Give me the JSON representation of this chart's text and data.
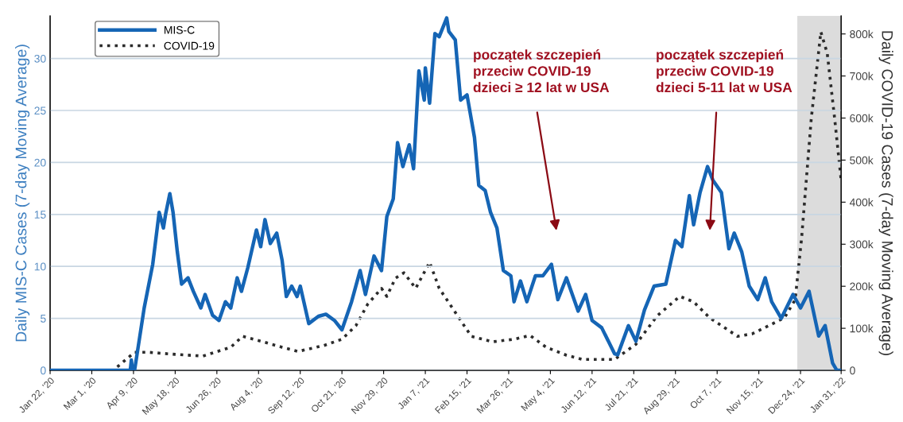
{
  "chart_data": {
    "type": "line",
    "ylabel": "Daily MIS-C Cases (7-day Moving Average)",
    "y2label": "Daily COVID-19 Cases (7-day Moving Average)",
    "xlim": [
      "2020-01-22",
      "2022-01-31"
    ],
    "xticks": [
      {
        "value": "2020-01-22",
        "label": "Jan 22, '20"
      },
      {
        "value": "2020-03-01",
        "label": "Mar 1, '20"
      },
      {
        "value": "2020-04-09",
        "label": "Apr 9, '20"
      },
      {
        "value": "2020-05-18",
        "label": "May 18, '20"
      },
      {
        "value": "2020-06-26",
        "label": "Jun 26, '20"
      },
      {
        "value": "2020-08-04",
        "label": "Aug 4, '20"
      },
      {
        "value": "2020-09-12",
        "label": "Sep 12, '20"
      },
      {
        "value": "2020-10-21",
        "label": "Oct 21, '20"
      },
      {
        "value": "2020-11-29",
        "label": "Nov 29, '20"
      },
      {
        "value": "2021-01-07",
        "label": "Jan 7, '21"
      },
      {
        "value": "2021-02-15",
        "label": "Feb 15, '21"
      },
      {
        "value": "2021-03-26",
        "label": "Mar 26, '21"
      },
      {
        "value": "2021-05-04",
        "label": "May 4, '21"
      },
      {
        "value": "2021-06-12",
        "label": "Jun 12, '21"
      },
      {
        "value": "2021-07-21",
        "label": "Jul 21, '21"
      },
      {
        "value": "2021-08-29",
        "label": "Aug 29, '21"
      },
      {
        "value": "2021-10-07",
        "label": "Oct 7, '21"
      },
      {
        "value": "2021-11-15",
        "label": "Nov 15, '21"
      },
      {
        "value": "2021-12-24",
        "label": "Dec 24, '21"
      },
      {
        "value": "2022-01-31",
        "label": "Jan 31, '22"
      }
    ],
    "ylim": [
      0,
      34.1
    ],
    "yticks": [
      0,
      5,
      10,
      15,
      20,
      25,
      30
    ],
    "y2lim": [
      0,
      843000
    ],
    "y2ticks": [
      0,
      {
        "value": 100000,
        "label": "100k"
      },
      {
        "value": 200000,
        "label": "200k"
      },
      {
        "value": 300000,
        "label": "300k"
      },
      {
        "value": 400000,
        "label": "400k"
      },
      {
        "value": 500000,
        "label": "500k"
      },
      {
        "value": 600000,
        "label": "600k"
      },
      {
        "value": 700000,
        "label": "700k"
      },
      {
        "value": 800000,
        "label": "800k"
      }
    ],
    "grid": "y",
    "legend": "top left",
    "marker": "none",
    "series": [
      {
        "name": "MIS-C",
        "color": "#1565b5",
        "line_style": "solid",
        "x": [
          "2020-01-22",
          "2020-04-06",
          "2020-04-07",
          "2020-04-08",
          "2020-04-10",
          "2020-04-19",
          "2020-04-27",
          "2020-05-03",
          "2020-05-07",
          "2020-05-09",
          "2020-05-13",
          "2020-05-16",
          "2020-05-20",
          "2020-05-24",
          "2020-05-30",
          "2020-06-04",
          "2020-06-11",
          "2020-06-15",
          "2020-06-22",
          "2020-06-28",
          "2020-07-04",
          "2020-07-09",
          "2020-07-15",
          "2020-07-19",
          "2020-07-25",
          "2020-08-02",
          "2020-08-06",
          "2020-08-10",
          "2020-08-15",
          "2020-08-21",
          "2020-08-26",
          "2020-08-30",
          "2020-09-04",
          "2020-09-09",
          "2020-09-12",
          "2020-09-20",
          "2020-09-29",
          "2020-10-06",
          "2020-10-14",
          "2020-10-21",
          "2020-10-30",
          "2020-11-07",
          "2020-11-12",
          "2020-11-20",
          "2020-11-27",
          "2020-12-02",
          "2020-12-08",
          "2020-12-12",
          "2020-12-17",
          "2020-12-23",
          "2020-12-27",
          "2021-01-01",
          "2021-01-06",
          "2021-01-07",
          "2021-01-11",
          "2021-01-16",
          "2021-01-20",
          "2021-01-27",
          "2021-01-29",
          "2021-02-04",
          "2021-02-09",
          "2021-02-15",
          "2021-02-22",
          "2021-02-26",
          "2021-03-04",
          "2021-03-09",
          "2021-03-15",
          "2021-03-21",
          "2021-03-28",
          "2021-03-31",
          "2021-04-06",
          "2021-04-12",
          "2021-04-20",
          "2021-04-27",
          "2021-05-05",
          "2021-05-11",
          "2021-05-19",
          "2021-05-30",
          "2021-06-06",
          "2021-06-12",
          "2021-06-21",
          "2021-07-03",
          "2021-07-06",
          "2021-07-16",
          "2021-07-23",
          "2021-07-31",
          "2021-08-09",
          "2021-08-20",
          "2021-08-29",
          "2021-09-04",
          "2021-09-11",
          "2021-09-15",
          "2021-09-21",
          "2021-09-28",
          "2021-10-03",
          "2021-10-11",
          "2021-10-18",
          "2021-10-23",
          "2021-10-30",
          "2021-11-06",
          "2021-11-14",
          "2021-11-21",
          "2021-11-27",
          "2021-12-06",
          "2021-12-17",
          "2021-12-24",
          "2022-01-01",
          "2022-01-10",
          "2022-01-16",
          "2022-01-23",
          "2022-01-27",
          "2022-01-30"
        ],
        "values": [
          0,
          0,
          1.0,
          0,
          0,
          6.0,
          10.2,
          15.2,
          13.7,
          15.0,
          17.0,
          15.2,
          11.4,
          8.3,
          8.9,
          7.6,
          6.0,
          7.3,
          5.3,
          4.8,
          6.6,
          6.0,
          8.9,
          7.6,
          9.9,
          13.5,
          11.9,
          14.5,
          12.2,
          13.2,
          10.6,
          7.1,
          8.1,
          7.1,
          8.1,
          4.5,
          5.2,
          5.4,
          4.8,
          3.9,
          6.6,
          9.6,
          7.3,
          11.0,
          9.6,
          14.8,
          16.5,
          21.9,
          19.6,
          21.7,
          19.4,
          28.8,
          26.0,
          29.1,
          25.7,
          32.4,
          32.1,
          33.9,
          32.6,
          31.8,
          26.0,
          26.5,
          22.4,
          17.8,
          17.3,
          15.2,
          13.7,
          9.6,
          9.1,
          6.6,
          8.6,
          6.6,
          9.1,
          9.1,
          10.2,
          6.8,
          8.9,
          5.7,
          7.3,
          4.8,
          4.1,
          1.6,
          1.5,
          4.3,
          2.8,
          5.8,
          8.1,
          8.3,
          12.5,
          11.9,
          16.8,
          14.0,
          17.1,
          19.6,
          18.3,
          17.1,
          11.7,
          13.2,
          11.4,
          8.1,
          6.8,
          8.9,
          6.6,
          5.0,
          7.3,
          6.0,
          7.6,
          3.3,
          4.3,
          0.7,
          0,
          0
        ]
      },
      {
        "name": "COVID-19",
        "color": "#2b2b2b",
        "line_style": "dotted",
        "axis": "y2",
        "x": [
          "2020-01-22",
          "2020-03-21",
          "2020-04-10",
          "2020-04-23",
          "2020-05-18",
          "2020-06-13",
          "2020-07-09",
          "2020-07-20",
          "2020-08-08",
          "2020-08-26",
          "2020-09-10",
          "2020-10-04",
          "2020-10-21",
          "2020-11-03",
          "2020-11-14",
          "2020-11-27",
          "2020-12-02",
          "2020-12-10",
          "2020-12-18",
          "2020-12-29",
          "2021-01-11",
          "2021-01-20",
          "2021-02-04",
          "2021-02-19",
          "2021-03-11",
          "2021-03-31",
          "2021-04-15",
          "2021-04-30",
          "2021-05-19",
          "2021-06-03",
          "2021-07-03",
          "2021-07-23",
          "2021-08-12",
          "2021-09-02",
          "2021-09-15",
          "2021-09-30",
          "2021-10-26",
          "2021-11-09",
          "2021-11-24",
          "2021-12-09",
          "2021-12-19",
          "2021-12-25",
          "2022-01-03",
          "2022-01-12",
          "2022-01-18",
          "2022-01-25",
          "2022-01-31"
        ],
        "values": [
          0,
          0,
          43000,
          43000,
          38000,
          34000,
          55000,
          81000,
          68000,
          55000,
          45000,
          59000,
          74000,
          106000,
          157000,
          195000,
          176000,
          219000,
          232000,
          195000,
          257000,
          195000,
          138000,
          81000,
          68000,
          74000,
          83000,
          55000,
          36000,
          26000,
          26000,
          62000,
          130000,
          176000,
          163000,
          125000,
          81000,
          87000,
          106000,
          125000,
          168000,
          314000,
          597000,
          805000,
          754000,
          597000,
          452000
        ]
      }
    ],
    "bands": [
      {
        "axis": "x",
        "from": "2021-12-21",
        "to": "2022-01-31",
        "color": "#dcdcdc"
      }
    ],
    "annotations": [
      "początek szczepień\nprzeciw COVID-19\ndzieci ≥ 12 lat w USA",
      "początek szczepień\nprzeciw COVID-19\ndzieci 5-11 lat w USA"
    ]
  }
}
